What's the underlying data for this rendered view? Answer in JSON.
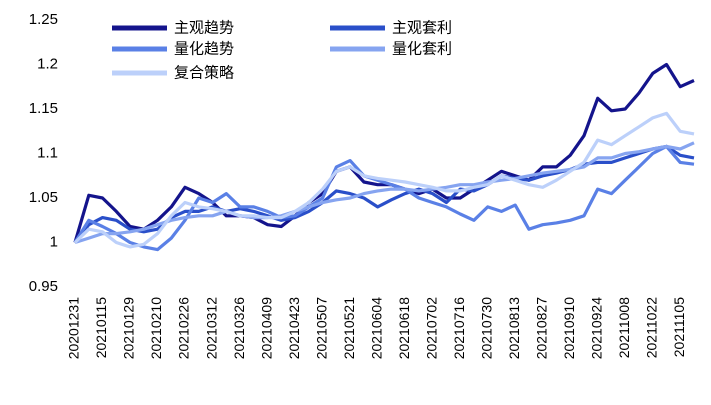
{
  "chart_data": {
    "type": "line",
    "categories": [
      "20201231",
      null,
      "20210115",
      null,
      "20210129",
      null,
      "20210210",
      null,
      "20210226",
      null,
      "20210312",
      null,
      "20210326",
      null,
      "20210409",
      null,
      "20210423",
      null,
      "20210507",
      null,
      "20210521",
      null,
      "20210604",
      null,
      "20210618",
      null,
      "20210702",
      null,
      "20210716",
      null,
      "20210730",
      null,
      "20210813",
      null,
      "20210827",
      null,
      "20210910",
      null,
      "20210924",
      null,
      "20211008",
      null,
      "20211022",
      null,
      "20211105",
      null
    ],
    "series": [
      {
        "name": "主观趋势",
        "color": "#14148c",
        "values": [
          1.0,
          1.053,
          1.05,
          1.035,
          1.018,
          1.015,
          1.025,
          1.04,
          1.062,
          1.055,
          1.045,
          1.03,
          1.03,
          1.028,
          1.02,
          1.018,
          1.03,
          1.045,
          1.055,
          1.08,
          1.085,
          1.068,
          1.065,
          1.065,
          1.06,
          1.055,
          1.06,
          1.05,
          1.05,
          1.06,
          1.07,
          1.08,
          1.075,
          1.07,
          1.085,
          1.085,
          1.098,
          1.12,
          1.162,
          1.148,
          1.15,
          1.168,
          1.19,
          1.2,
          1.175,
          1.182
        ]
      },
      {
        "name": "主观套利",
        "color": "#2a4fc9",
        "values": [
          1.0,
          1.02,
          1.028,
          1.025,
          1.015,
          1.012,
          1.015,
          1.028,
          1.035,
          1.035,
          1.04,
          1.035,
          1.038,
          1.035,
          1.03,
          1.025,
          1.028,
          1.035,
          1.045,
          1.058,
          1.055,
          1.05,
          1.04,
          1.048,
          1.055,
          1.06,
          1.055,
          1.045,
          1.06,
          1.058,
          1.065,
          1.075,
          1.072,
          1.07,
          1.075,
          1.078,
          1.082,
          1.088,
          1.09,
          1.09,
          1.095,
          1.1,
          1.105,
          1.108,
          1.098,
          1.095
        ]
      },
      {
        "name": "量化趋势",
        "color": "#5a80e6",
        "values": [
          1.0,
          1.025,
          1.018,
          1.01,
          1.0,
          0.995,
          0.992,
          1.005,
          1.025,
          1.05,
          1.045,
          1.055,
          1.04,
          1.04,
          1.035,
          1.028,
          1.03,
          1.04,
          1.05,
          1.085,
          1.092,
          1.075,
          1.07,
          1.065,
          1.06,
          1.05,
          1.045,
          1.04,
          1.032,
          1.025,
          1.04,
          1.035,
          1.042,
          1.015,
          1.02,
          1.022,
          1.025,
          1.03,
          1.06,
          1.055,
          1.07,
          1.085,
          1.1,
          1.108,
          1.09,
          1.088
        ]
      },
      {
        "name": "量化套利",
        "color": "#86a4f0",
        "values": [
          1.0,
          1.005,
          1.01,
          1.01,
          1.012,
          1.015,
          1.02,
          1.025,
          1.028,
          1.03,
          1.03,
          1.035,
          1.03,
          1.028,
          1.028,
          1.03,
          1.035,
          1.04,
          1.045,
          1.048,
          1.05,
          1.055,
          1.058,
          1.06,
          1.06,
          1.058,
          1.06,
          1.062,
          1.065,
          1.065,
          1.068,
          1.07,
          1.072,
          1.075,
          1.078,
          1.08,
          1.082,
          1.085,
          1.095,
          1.095,
          1.1,
          1.102,
          1.105,
          1.108,
          1.105,
          1.112
        ]
      },
      {
        "name": "复合策略",
        "color": "#bcd0fa",
        "values": [
          1.0,
          1.015,
          1.012,
          1.0,
          0.995,
          0.998,
          1.01,
          1.03,
          1.045,
          1.04,
          1.038,
          1.035,
          1.03,
          1.03,
          1.028,
          1.028,
          1.035,
          1.045,
          1.06,
          1.08,
          1.085,
          1.075,
          1.072,
          1.07,
          1.068,
          1.065,
          1.062,
          1.058,
          1.058,
          1.062,
          1.065,
          1.075,
          1.07,
          1.065,
          1.062,
          1.07,
          1.08,
          1.09,
          1.115,
          1.11,
          1.12,
          1.13,
          1.14,
          1.145,
          1.125,
          1.122
        ]
      }
    ],
    "ylim": [
      0.95,
      1.25
    ],
    "yticks": [
      0.95,
      1,
      1.05,
      1.1,
      1.15,
      1.2,
      1.25
    ],
    "grid": false
  }
}
